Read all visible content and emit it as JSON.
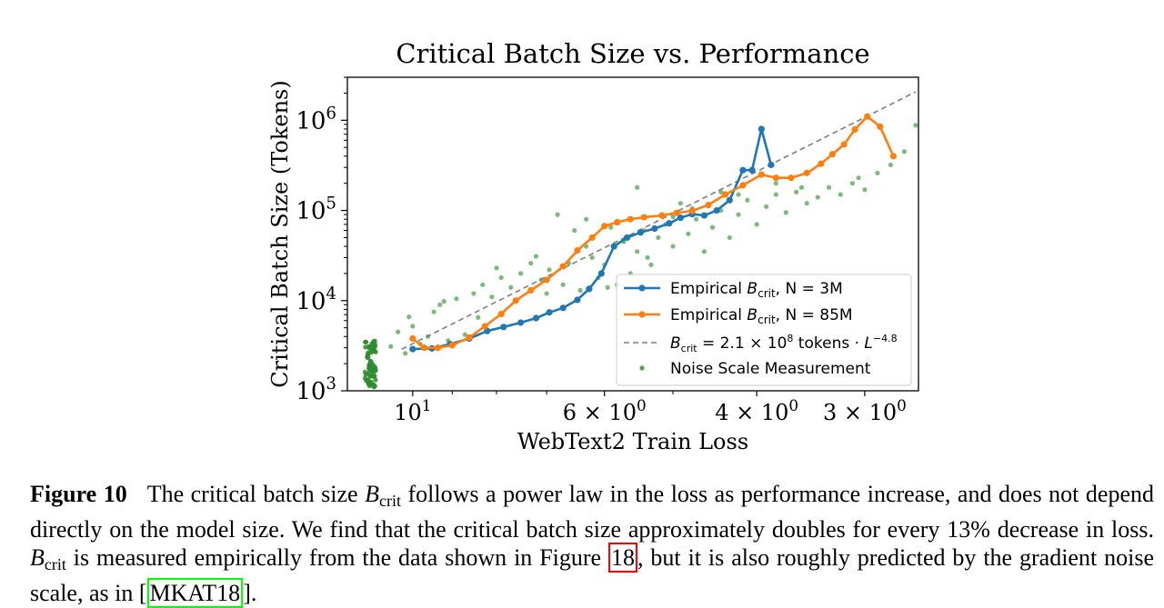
{
  "chart_data": {
    "type": "scatter",
    "title": "Critical Batch Size vs. Performance",
    "xlabel": "WebText2 Train Loss",
    "ylabel": "Critical Batch Size (Tokens)",
    "xscale": "log (inverted)",
    "yscale": "log",
    "xlim": [
      11.9,
      2.6
    ],
    "ylim": [
      1000,
      3000000
    ],
    "x_ticks": [
      {
        "value": 10,
        "label": "10",
        "sup": "1"
      },
      {
        "value": 6,
        "label": "6 × 10",
        "sup": "0"
      },
      {
        "value": 4,
        "label": "4 × 10",
        "sup": "0"
      },
      {
        "value": 3,
        "label": "3 × 10",
        "sup": "0"
      }
    ],
    "x_minor_ticks": [
      9,
      8,
      7,
      5
    ],
    "y_ticks": [
      {
        "value": 1000,
        "label": "10",
        "sup": "3"
      },
      {
        "value": 10000,
        "label": "10",
        "sup": "4"
      },
      {
        "value": 100000,
        "label": "10",
        "sup": "5"
      },
      {
        "value": 1000000,
        "label": "10",
        "sup": "6"
      }
    ],
    "legend_position": "lower-right",
    "series": [
      {
        "name": "Empirical B_crit, N = 3M",
        "label_prefix": "Empirical ",
        "label_math": "B",
        "label_sub": "crit",
        "label_suffix": ", N = 3M",
        "color": "#1f77b4",
        "style": "line-marker",
        "points": [
          [
            10.0,
            2900
          ],
          [
            9.5,
            2950
          ],
          [
            9.05,
            3300
          ],
          [
            8.6,
            3800
          ],
          [
            8.2,
            4600
          ],
          [
            7.85,
            5100
          ],
          [
            7.5,
            5700
          ],
          [
            7.2,
            6400
          ],
          [
            6.95,
            7400
          ],
          [
            6.7,
            8300
          ],
          [
            6.45,
            10200
          ],
          [
            6.25,
            13500
          ],
          [
            6.05,
            20000
          ],
          [
            5.85,
            40000
          ],
          [
            5.65,
            50000
          ],
          [
            5.45,
            57000
          ],
          [
            5.25,
            63000
          ],
          [
            5.05,
            72000
          ],
          [
            4.9,
            83000
          ],
          [
            4.75,
            91000
          ],
          [
            4.6,
            88000
          ],
          [
            4.45,
            100000
          ],
          [
            4.3,
            130000
          ],
          [
            4.15,
            280000
          ],
          [
            4.05,
            280000
          ],
          [
            3.95,
            800000
          ],
          [
            3.85,
            320000
          ]
        ]
      },
      {
        "name": "Empirical B_crit, N = 85M",
        "label_prefix": "Empirical ",
        "label_math": "B",
        "label_sub": "crit",
        "label_suffix": ", N = 85M",
        "color": "#ff7f0e",
        "style": "line-marker",
        "points": [
          [
            10.0,
            3800
          ],
          [
            9.7,
            3000
          ],
          [
            9.35,
            3000
          ],
          [
            9.0,
            3200
          ],
          [
            8.6,
            3900
          ],
          [
            8.25,
            5200
          ],
          [
            7.9,
            7100
          ],
          [
            7.6,
            10000
          ],
          [
            7.3,
            13000
          ],
          [
            7.0,
            17000
          ],
          [
            6.7,
            24000
          ],
          [
            6.45,
            36000
          ],
          [
            6.2,
            50000
          ],
          [
            6.0,
            67000
          ],
          [
            5.8,
            74000
          ],
          [
            5.6,
            80000
          ],
          [
            5.4,
            84000
          ],
          [
            5.15,
            88000
          ],
          [
            4.95,
            94000
          ],
          [
            4.75,
            99000
          ],
          [
            4.55,
            115000
          ],
          [
            4.35,
            150000
          ],
          [
            4.15,
            190000
          ],
          [
            3.95,
            250000
          ],
          [
            3.8,
            230000
          ],
          [
            3.65,
            230000
          ],
          [
            3.5,
            260000
          ],
          [
            3.37,
            330000
          ],
          [
            3.27,
            420000
          ],
          [
            3.17,
            540000
          ],
          [
            3.08,
            790000
          ],
          [
            2.98,
            1100000
          ],
          [
            2.88,
            850000
          ],
          [
            2.78,
            400000
          ]
        ]
      },
      {
        "name": "B_crit = 2.1 × 10^8 tokens · L^-4.8",
        "color": "#7f7f7f",
        "style": "dashed",
        "A": 210000000,
        "exponent": -4.8,
        "x_range": [
          10.3,
          2.62
        ]
      },
      {
        "name": "Noise Scale Measurement",
        "label": "Noise Scale Measurement",
        "color": "#4ca64c",
        "cluster_color": "#2e8b2e",
        "style": "points",
        "points": [
          [
            10.6,
            3100
          ],
          [
            10.4,
            4500
          ],
          [
            10.2,
            2600
          ],
          [
            10.0,
            5200
          ],
          [
            9.8,
            3300
          ],
          [
            9.6,
            4000
          ],
          [
            9.45,
            7500
          ],
          [
            9.3,
            9000
          ],
          [
            9.1,
            3600
          ],
          [
            8.9,
            10500
          ],
          [
            8.7,
            4200
          ],
          [
            8.5,
            12000
          ],
          [
            8.3,
            15000
          ],
          [
            8.1,
            11000
          ],
          [
            7.9,
            18000
          ],
          [
            7.7,
            14000
          ],
          [
            7.5,
            20000
          ],
          [
            7.3,
            26000
          ],
          [
            7.1,
            17000
          ],
          [
            6.95,
            22000
          ],
          [
            6.8,
            90000
          ],
          [
            6.7,
            15000
          ],
          [
            6.6,
            26000
          ],
          [
            6.5,
            60000
          ],
          [
            6.4,
            13000
          ],
          [
            6.3,
            40000
          ],
          [
            6.2,
            30000
          ],
          [
            6.1,
            18000
          ],
          [
            6.0,
            25000
          ],
          [
            5.9,
            65000
          ],
          [
            5.8,
            15000
          ],
          [
            5.7,
            45000
          ],
          [
            5.6,
            20000
          ],
          [
            5.5,
            35000
          ],
          [
            5.4,
            60000
          ],
          [
            5.3,
            25000
          ],
          [
            5.2,
            50000
          ],
          [
            5.1,
            70000
          ],
          [
            5.0,
            40000
          ],
          [
            4.9,
            120000
          ],
          [
            4.8,
            55000
          ],
          [
            4.7,
            80000
          ],
          [
            4.6,
            35000
          ],
          [
            4.5,
            65000
          ],
          [
            4.4,
            100000
          ],
          [
            4.3,
            50000
          ],
          [
            4.2,
            90000
          ],
          [
            4.1,
            130000
          ],
          [
            4.0,
            70000
          ],
          [
            3.9,
            110000
          ],
          [
            3.8,
            150000
          ],
          [
            3.7,
            95000
          ],
          [
            3.6,
            160000
          ],
          [
            3.5,
            120000
          ],
          [
            3.4,
            140000
          ],
          [
            3.3,
            180000
          ],
          [
            3.2,
            150000
          ],
          [
            3.1,
            200000
          ],
          [
            3.0,
            170000
          ],
          [
            2.9,
            260000
          ],
          [
            2.8,
            320000
          ],
          [
            2.7,
            450000
          ],
          [
            2.62,
            880000
          ],
          [
            8.4,
            6500
          ],
          [
            7.0,
            12000
          ],
          [
            6.3,
            80000
          ],
          [
            5.5,
            180000
          ],
          [
            5.0,
            85000
          ],
          [
            4.4,
            160000
          ],
          [
            3.8,
            200000
          ],
          [
            10.1,
            6600
          ],
          [
            9.2,
            9800
          ],
          [
            8.0,
            23000
          ],
          [
            7.2,
            31000
          ],
          [
            5.95,
            14000
          ],
          [
            5.35,
            30000
          ],
          [
            4.75,
            105000
          ],
          [
            4.2,
            150000
          ],
          [
            3.55,
            180000
          ],
          [
            3.05,
            230000
          ]
        ],
        "cluster": {
          "x": 11.2,
          "ymin": 1100,
          "ymax": 3600,
          "count": 75
        }
      }
    ]
  },
  "caption": {
    "label": "Figure 10",
    "text_1": "The critical batch size ",
    "b": "B",
    "crit": "crit",
    "text_2": " follows a power law in the loss as performance increase, and does not depend directly on the model size. We find that the critical batch size approximately doubles for every ",
    "percent": "13%",
    "text_3": " decrease in loss. ",
    "text_4": " is measured empirically from the data shown in Figure ",
    "ref_fig": "18",
    "text_5": ", but it is also roughly predicted by the gradient noise scale, as in [",
    "ref_cite": "MKAT18",
    "text_6": "]."
  }
}
